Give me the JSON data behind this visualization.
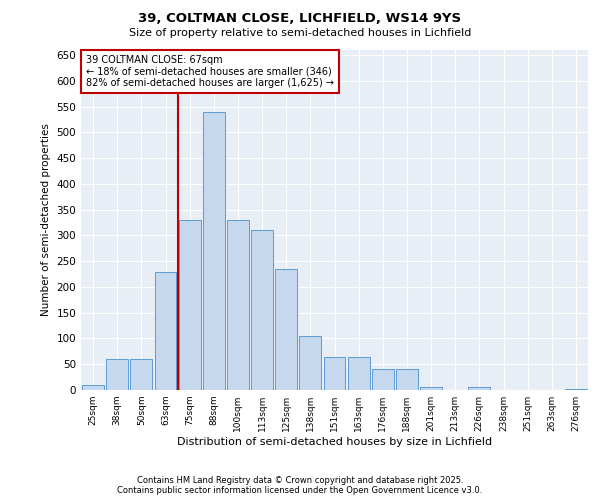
{
  "title_line1": "39, COLTMAN CLOSE, LICHFIELD, WS14 9YS",
  "title_line2": "Size of property relative to semi-detached houses in Lichfield",
  "xlabel": "Distribution of semi-detached houses by size in Lichfield",
  "ylabel": "Number of semi-detached properties",
  "categories": [
    "25sqm",
    "38sqm",
    "50sqm",
    "63sqm",
    "75sqm",
    "88sqm",
    "100sqm",
    "113sqm",
    "125sqm",
    "138sqm",
    "151sqm",
    "163sqm",
    "176sqm",
    "188sqm",
    "201sqm",
    "213sqm",
    "226sqm",
    "238sqm",
    "251sqm",
    "263sqm",
    "276sqm"
  ],
  "values": [
    10,
    60,
    60,
    230,
    330,
    540,
    330,
    310,
    235,
    105,
    65,
    65,
    40,
    40,
    5,
    0,
    5,
    0,
    0,
    0,
    2
  ],
  "bar_color": "#c5d8ed",
  "bar_edge_color": "#5b9bd5",
  "vline_color": "#c00000",
  "annotation_title": "39 COLTMAN CLOSE: 67sqm",
  "annotation_line2": "← 18% of semi-detached houses are smaller (346)",
  "annotation_line3": "82% of semi-detached houses are larger (1,625) →",
  "annotation_box_color": "#c00000",
  "ylim": [
    0,
    660
  ],
  "yticks": [
    0,
    50,
    100,
    150,
    200,
    250,
    300,
    350,
    400,
    450,
    500,
    550,
    600,
    650
  ],
  "background_color": "#e8eef5",
  "footer_line1": "Contains HM Land Registry data © Crown copyright and database right 2025.",
  "footer_line2": "Contains public sector information licensed under the Open Government Licence v3.0."
}
